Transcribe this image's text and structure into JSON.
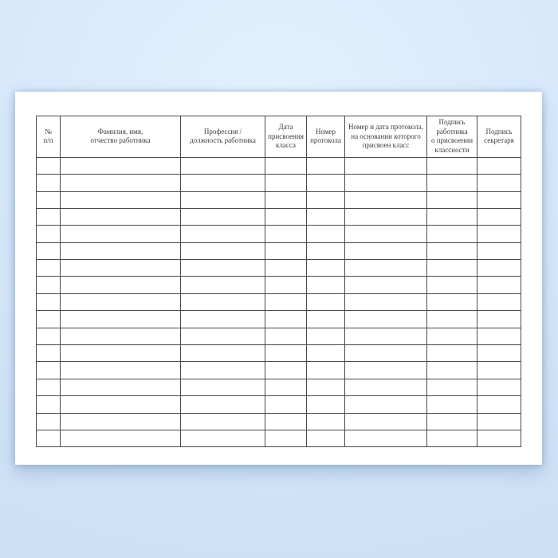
{
  "scene": {
    "description": "Blank classness-assignment register form (landscape white sheet) on a light blue backdrop"
  },
  "colors": {
    "background_top": "#e2f1fe",
    "background_bottom": "#c8dcf2",
    "sheet": "#ffffff",
    "grid_line": "#4a4a4a",
    "header_text": "#3c3c3c",
    "shadow": "rgba(103,134,170,0.45)"
  },
  "table": {
    "columns": [
      {
        "name": "col-row-number",
        "label": "№\nп/п"
      },
      {
        "name": "col-employee-name",
        "label": "Фамилия, имя,\nотчество работника"
      },
      {
        "name": "col-profession",
        "label": "Профессия /\nдолжность работника"
      },
      {
        "name": "col-class-date",
        "label": "Дата\nприсвоения\nкласса"
      },
      {
        "name": "col-protocol-number",
        "label": "Номер\nпротокола"
      },
      {
        "name": "col-protocol-basis",
        "label": "Номер и дата протокола,\nна основании которого\nприсвоен класс"
      },
      {
        "name": "col-employee-signature",
        "label": "Подпись\nработника\nо присвоении\nклассности"
      },
      {
        "name": "col-secretary-signature",
        "label": "Подпись\nсекретаря"
      }
    ],
    "empty_row_count": 17
  }
}
